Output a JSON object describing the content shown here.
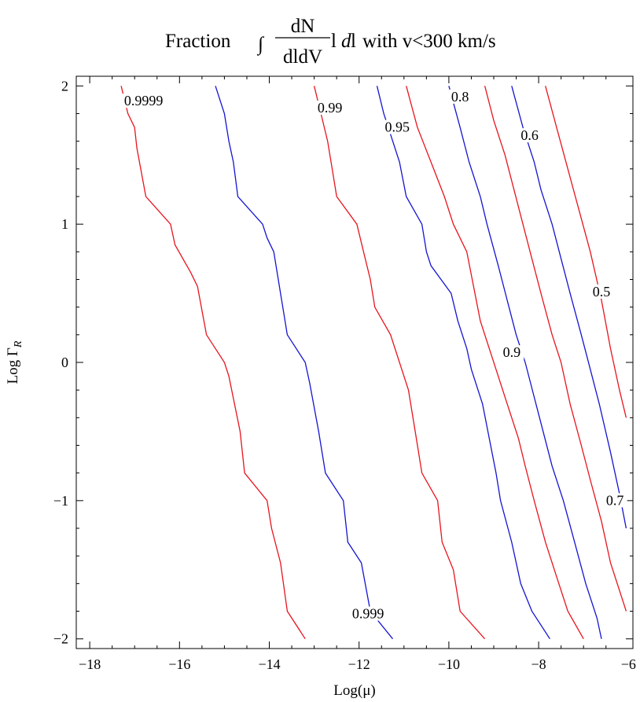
{
  "chart_data": {
    "type": "line",
    "title": {
      "prefix": "Fraction",
      "integral": "∫",
      "numerator": "dN",
      "denominator": "dldV",
      "suffix": "l",
      "dl": "d",
      "dl2": "l",
      "rest": "with v<300 km/s"
    },
    "xlabel": "Log(μ)",
    "ylabel": {
      "main": "Log Γ",
      "sub": "R"
    },
    "xlim": [
      -18.3,
      -5.9
    ],
    "ylim": [
      -2.07,
      2.07
    ],
    "xticks": [
      -18,
      -16,
      -14,
      -12,
      -10,
      -8,
      -6
    ],
    "yticks": [
      -2,
      -1,
      0,
      1,
      2
    ],
    "xtick_labels": [
      "−18",
      "−16",
      "−14",
      "−12",
      "−10",
      "−8",
      "−6"
    ],
    "ytick_labels": [
      "−2",
      "−1",
      "0",
      "1",
      "2"
    ],
    "colors": {
      "red": "#e8141e",
      "blue": "#1414d2"
    },
    "series": [
      {
        "level": "0.9999",
        "color": "red",
        "points": [
          [
            -17.3,
            2.0
          ],
          [
            -17.15,
            1.8
          ],
          [
            -17.0,
            1.7
          ],
          [
            -16.95,
            1.55
          ],
          [
            -16.75,
            1.2
          ],
          [
            -16.2,
            1.0
          ],
          [
            -16.1,
            0.85
          ],
          [
            -15.75,
            0.65
          ],
          [
            -15.6,
            0.55
          ],
          [
            -15.4,
            0.2
          ],
          [
            -15.0,
            0.0
          ],
          [
            -14.9,
            -0.1
          ],
          [
            -14.65,
            -0.5
          ],
          [
            -14.55,
            -0.8
          ],
          [
            -14.05,
            -1.0
          ],
          [
            -13.95,
            -1.2
          ],
          [
            -13.75,
            -1.45
          ],
          [
            -13.6,
            -1.8
          ],
          [
            -13.2,
            -2.0
          ]
        ]
      },
      {
        "level": "0.999",
        "color": "blue",
        "points": [
          [
            -15.2,
            2.0
          ],
          [
            -15.0,
            1.8
          ],
          [
            -14.9,
            1.6
          ],
          [
            -14.8,
            1.45
          ],
          [
            -14.7,
            1.2
          ],
          [
            -14.15,
            1.0
          ],
          [
            -14.05,
            0.9
          ],
          [
            -13.9,
            0.8
          ],
          [
            -13.75,
            0.5
          ],
          [
            -13.6,
            0.2
          ],
          [
            -13.2,
            0.0
          ],
          [
            -13.1,
            -0.15
          ],
          [
            -12.9,
            -0.5
          ],
          [
            -12.75,
            -0.8
          ],
          [
            -12.35,
            -1.0
          ],
          [
            -12.25,
            -1.3
          ],
          [
            -11.95,
            -1.45
          ],
          [
            -11.75,
            -1.8
          ],
          [
            -11.25,
            -2.0
          ]
        ]
      },
      {
        "level": "0.99",
        "color": "red",
        "points": [
          [
            -13.0,
            2.0
          ],
          [
            -12.85,
            1.8
          ],
          [
            -12.7,
            1.6
          ],
          [
            -12.6,
            1.4
          ],
          [
            -12.5,
            1.2
          ],
          [
            -12.05,
            1.0
          ],
          [
            -11.9,
            0.8
          ],
          [
            -11.75,
            0.6
          ],
          [
            -11.65,
            0.4
          ],
          [
            -11.3,
            0.2
          ],
          [
            -11.1,
            0.0
          ],
          [
            -10.9,
            -0.2
          ],
          [
            -10.75,
            -0.5
          ],
          [
            -10.6,
            -0.8
          ],
          [
            -10.25,
            -1.0
          ],
          [
            -10.15,
            -1.3
          ],
          [
            -9.9,
            -1.5
          ],
          [
            -9.75,
            -1.8
          ],
          [
            -9.2,
            -2.0
          ]
        ]
      },
      {
        "level": "0.95",
        "color": "blue",
        "points": [
          [
            -11.6,
            2.0
          ],
          [
            -11.45,
            1.8
          ],
          [
            -11.25,
            1.6
          ],
          [
            -11.1,
            1.45
          ],
          [
            -10.95,
            1.2
          ],
          [
            -10.6,
            1.0
          ],
          [
            -10.5,
            0.8
          ],
          [
            -10.4,
            0.7
          ],
          [
            -9.95,
            0.5
          ],
          [
            -9.8,
            0.3
          ],
          [
            -9.6,
            0.1
          ],
          [
            -9.5,
            -0.05
          ],
          [
            -9.25,
            -0.3
          ],
          [
            -9.1,
            -0.55
          ],
          [
            -8.95,
            -0.8
          ],
          [
            -8.85,
            -1.0
          ],
          [
            -8.6,
            -1.3
          ],
          [
            -8.4,
            -1.6
          ],
          [
            -8.15,
            -1.8
          ],
          [
            -7.75,
            -2.0
          ]
        ]
      },
      {
        "level": "0.9",
        "color": "red",
        "points": [
          [
            -10.95,
            2.0
          ],
          [
            -10.7,
            1.7
          ],
          [
            -10.4,
            1.45
          ],
          [
            -10.1,
            1.2
          ],
          [
            -9.9,
            1.0
          ],
          [
            -9.6,
            0.8
          ],
          [
            -9.45,
            0.55
          ],
          [
            -9.3,
            0.3
          ],
          [
            -9.1,
            0.1
          ],
          [
            -8.9,
            -0.1
          ],
          [
            -8.7,
            -0.3
          ],
          [
            -8.45,
            -0.55
          ],
          [
            -8.3,
            -0.75
          ],
          [
            -8.1,
            -1.0
          ],
          [
            -7.85,
            -1.3
          ],
          [
            -7.6,
            -1.55
          ],
          [
            -7.35,
            -1.8
          ],
          [
            -7.0,
            -2.0
          ]
        ]
      },
      {
        "level": "0.8",
        "color": "blue",
        "points": [
          [
            -10.0,
            2.0
          ],
          [
            -9.75,
            1.7
          ],
          [
            -9.55,
            1.45
          ],
          [
            -9.3,
            1.2
          ],
          [
            -9.15,
            1.0
          ],
          [
            -8.9,
            0.7
          ],
          [
            -8.7,
            0.45
          ],
          [
            -8.5,
            0.2
          ],
          [
            -8.3,
            0.0
          ],
          [
            -8.1,
            -0.25
          ],
          [
            -7.9,
            -0.5
          ],
          [
            -7.7,
            -0.75
          ],
          [
            -7.45,
            -1.0
          ],
          [
            -7.2,
            -1.3
          ],
          [
            -6.95,
            -1.6
          ],
          [
            -6.7,
            -1.85
          ],
          [
            -6.6,
            -2.0
          ]
        ]
      },
      {
        "level": "0.7",
        "color": "red",
        "points": [
          [
            -9.2,
            2.0
          ],
          [
            -9.0,
            1.75
          ],
          [
            -8.75,
            1.5
          ],
          [
            -8.55,
            1.25
          ],
          [
            -8.35,
            1.0
          ],
          [
            -8.15,
            0.75
          ],
          [
            -7.95,
            0.5
          ],
          [
            -7.7,
            0.2
          ],
          [
            -7.5,
            0.0
          ],
          [
            -7.3,
            -0.3
          ],
          [
            -7.05,
            -0.6
          ],
          [
            -6.85,
            -0.85
          ],
          [
            -6.6,
            -1.15
          ],
          [
            -6.4,
            -1.45
          ],
          [
            -6.1,
            -1.75
          ],
          [
            -6.05,
            -1.8
          ]
        ]
      },
      {
        "level": "0.6",
        "color": "blue",
        "points": [
          [
            -8.6,
            2.0
          ],
          [
            -8.35,
            1.7
          ],
          [
            -8.1,
            1.45
          ],
          [
            -7.95,
            1.25
          ],
          [
            -7.7,
            1.0
          ],
          [
            -7.5,
            0.75
          ],
          [
            -7.3,
            0.5
          ],
          [
            -7.05,
            0.2
          ],
          [
            -6.85,
            -0.05
          ],
          [
            -6.65,
            -0.3
          ],
          [
            -6.4,
            -0.65
          ],
          [
            -6.2,
            -0.95
          ],
          [
            -6.05,
            -1.2
          ]
        ]
      },
      {
        "level": "0.5",
        "color": "red",
        "points": [
          [
            -7.85,
            2.0
          ],
          [
            -7.6,
            1.7
          ],
          [
            -7.35,
            1.4
          ],
          [
            -7.1,
            1.1
          ],
          [
            -6.85,
            0.8
          ],
          [
            -6.6,
            0.45
          ],
          [
            -6.4,
            0.1
          ],
          [
            -6.2,
            -0.2
          ],
          [
            -6.05,
            -0.4
          ]
        ]
      }
    ],
    "labels": [
      {
        "text": "0.9999",
        "x": -16.8,
        "y": 1.87
      },
      {
        "text": "0.99",
        "x": -12.65,
        "y": 1.82
      },
      {
        "text": "0.95",
        "x": -11.15,
        "y": 1.68
      },
      {
        "text": "0.8",
        "x": -9.75,
        "y": 1.9
      },
      {
        "text": "0.6",
        "x": -8.2,
        "y": 1.62
      },
      {
        "text": "0.5",
        "x": -6.6,
        "y": 0.49
      },
      {
        "text": "0.9",
        "x": -8.6,
        "y": 0.05
      },
      {
        "text": "0.7",
        "x": -6.3,
        "y": -1.02
      },
      {
        "text": "0.999",
        "x": -11.8,
        "y": -1.84
      }
    ]
  }
}
